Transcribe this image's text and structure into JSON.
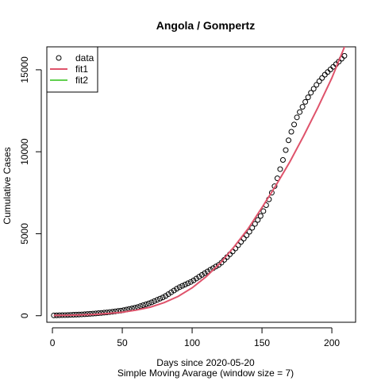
{
  "chart_data": {
    "type": "scatter",
    "title": "Angola / Gompertz",
    "xlabel": "Days since 2020-05-20",
    "xlabel2": "Simple Moving Avarage (window size = 7)",
    "ylabel": "Cumulative Cases",
    "xlim": [
      -4,
      217
    ],
    "ylim": [
      -400,
      16400
    ],
    "x_ticks": [
      0,
      50,
      100,
      150,
      200
    ],
    "y_ticks": [
      0,
      5000,
      10000,
      15000
    ],
    "legend": {
      "position": "top-left",
      "entries": [
        {
          "label": "data",
          "kind": "circle",
          "color": "#000000"
        },
        {
          "label": "fit1",
          "kind": "line",
          "color": "#df536b"
        },
        {
          "label": "fit2",
          "kind": "line",
          "color": "#61d04f"
        }
      ]
    },
    "series": [
      {
        "name": "data",
        "kind": "points",
        "x_start": 1,
        "x_end": 209,
        "x_step": 2,
        "anchors": [
          [
            1,
            20
          ],
          [
            10,
            40
          ],
          [
            20,
            75
          ],
          [
            30,
            130
          ],
          [
            40,
            210
          ],
          [
            50,
            320
          ],
          [
            60,
            500
          ],
          [
            70,
            780
          ],
          [
            80,
            1150
          ],
          [
            90,
            1700
          ],
          [
            100,
            2100
          ],
          [
            110,
            2650
          ],
          [
            120,
            3150
          ],
          [
            130,
            4000
          ],
          [
            140,
            5000
          ],
          [
            150,
            6200
          ],
          [
            155,
            7100
          ],
          [
            160,
            8100
          ],
          [
            165,
            9500
          ],
          [
            170,
            11000
          ],
          [
            175,
            12100
          ],
          [
            180,
            12900
          ],
          [
            185,
            13600
          ],
          [
            190,
            14200
          ],
          [
            195,
            14700
          ],
          [
            200,
            15100
          ],
          [
            205,
            15500
          ],
          [
            209,
            15850
          ]
        ]
      },
      {
        "name": "fit1",
        "kind": "line",
        "color": "#df536b",
        "points": [
          [
            1,
            15
          ],
          [
            10,
            25
          ],
          [
            20,
            45
          ],
          [
            30,
            80
          ],
          [
            40,
            135
          ],
          [
            50,
            210
          ],
          [
            60,
            340
          ],
          [
            70,
            520
          ],
          [
            80,
            800
          ],
          [
            90,
            1180
          ],
          [
            100,
            1700
          ],
          [
            110,
            2380
          ],
          [
            120,
            3200
          ],
          [
            130,
            4200
          ],
          [
            140,
            5300
          ],
          [
            150,
            6600
          ],
          [
            160,
            7950
          ],
          [
            170,
            9400
          ],
          [
            180,
            11000
          ],
          [
            190,
            12700
          ],
          [
            200,
            14500
          ],
          [
            210,
            16600
          ]
        ]
      },
      {
        "name": "fit2",
        "kind": "line",
        "color": "#61d04f",
        "points": []
      }
    ]
  }
}
